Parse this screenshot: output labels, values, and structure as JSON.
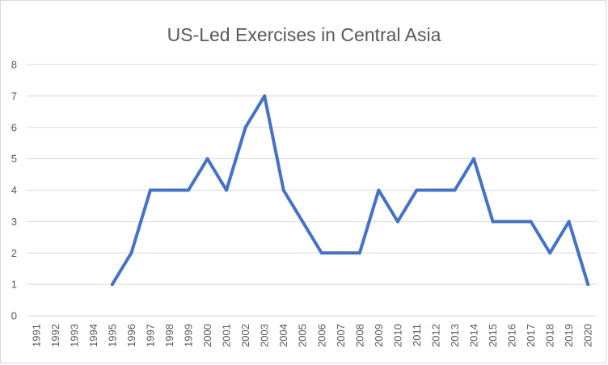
{
  "chart_data": {
    "type": "line",
    "title": "US-Led Exercises in Central Asia",
    "xlabel": "",
    "ylabel": "",
    "categories": [
      "1991",
      "1992",
      "1993",
      "1994",
      "1995",
      "1996",
      "1997",
      "1998",
      "1999",
      "2000",
      "2001",
      "2002",
      "2003",
      "2004",
      "2005",
      "2006",
      "2007",
      "2008",
      "2009",
      "2010",
      "2011",
      "2012",
      "2013",
      "2014",
      "2015",
      "2016",
      "2017",
      "2018",
      "2019",
      "2020"
    ],
    "series": [
      {
        "name": "US-Led Exercises",
        "values": [
          null,
          null,
          null,
          null,
          1,
          2,
          4,
          4,
          4,
          5,
          4,
          6,
          7,
          4,
          3,
          2,
          2,
          2,
          4,
          3,
          4,
          4,
          4,
          5,
          3,
          3,
          3,
          2,
          3,
          1
        ]
      }
    ],
    "ylim": [
      0,
      8
    ],
    "yticks": [
      "0",
      "1",
      "2",
      "3",
      "4",
      "5",
      "6",
      "7",
      "8"
    ],
    "grid": true,
    "legend": "none",
    "colors": {
      "line": "#4472c4",
      "grid": "#d9d9d9",
      "text": "#595959"
    }
  }
}
